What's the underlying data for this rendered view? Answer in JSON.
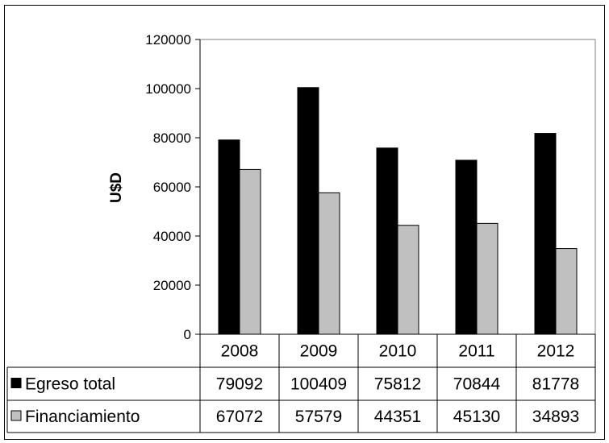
{
  "chart_data": {
    "type": "bar",
    "title": "",
    "xlabel": "",
    "ylabel": "U$D",
    "ylim": [
      0,
      120000
    ],
    "yticks": [
      0,
      20000,
      40000,
      60000,
      80000,
      100000,
      120000
    ],
    "categories": [
      "2008",
      "2009",
      "2010",
      "2011",
      "2012"
    ],
    "series": [
      {
        "name": "Egreso total",
        "color": "#000000",
        "values": [
          79092,
          100409,
          75812,
          70844,
          81778
        ]
      },
      {
        "name": "Financiamiento",
        "color": "#c0c0c0",
        "values": [
          67072,
          57579,
          44351,
          45130,
          34893
        ]
      }
    ],
    "grid": false,
    "legend": "data-table"
  }
}
